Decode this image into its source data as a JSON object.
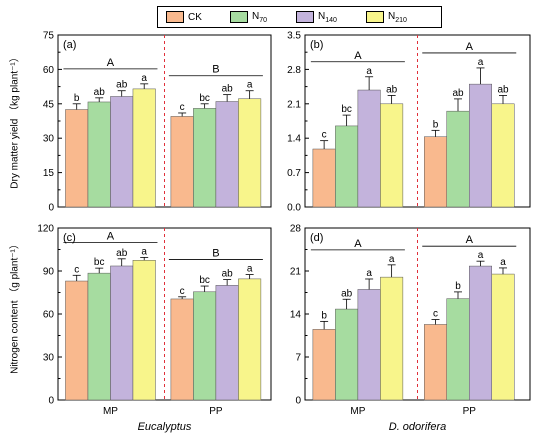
{
  "legend": [
    {
      "label": "CK",
      "color": "#f9b98e"
    },
    {
      "label": "N70",
      "color": "#a6dca0"
    },
    {
      "label": "N140",
      "color": "#c3b3dc"
    },
    {
      "label": "N210",
      "color": "#f8f58b"
    }
  ],
  "y_axis_titles": {
    "top": "Dry matter yield （kg plant⁻¹）",
    "bottom": "Nitrogen  content （g plant⁻¹）"
  },
  "chart_data": [
    {
      "type": "bar",
      "panel": "(a)",
      "categories": [
        "MP",
        "PP"
      ],
      "series": [
        {
          "name": "CK",
          "values": [
            42.5,
            39.5
          ],
          "errors": [
            2.5,
            1.5
          ],
          "letters": [
            "b",
            "c"
          ]
        },
        {
          "name": "N70",
          "values": [
            45.8,
            43.0
          ],
          "errors": [
            1.8,
            2.0
          ],
          "letters": [
            "ab",
            "bc"
          ]
        },
        {
          "name": "N140",
          "values": [
            48.2,
            46.0
          ],
          "errors": [
            2.5,
            3.0
          ],
          "letters": [
            "ab",
            "ab"
          ]
        },
        {
          "name": "N210",
          "values": [
            51.5,
            47.2
          ],
          "errors": [
            2.2,
            3.5
          ],
          "letters": [
            "a",
            "a"
          ]
        }
      ],
      "group_letters": [
        "A",
        "B"
      ],
      "ylim": [
        0,
        75
      ],
      "yticks": [
        0,
        15,
        30,
        45,
        60,
        75
      ],
      "xlabel": "Eucalyptus"
    },
    {
      "type": "bar",
      "panel": "(b)",
      "categories": [
        "MP",
        "PP"
      ],
      "series": [
        {
          "name": "CK",
          "values": [
            1.18,
            1.43
          ],
          "errors": [
            0.17,
            0.13
          ],
          "letters": [
            "c",
            "b"
          ]
        },
        {
          "name": "N70",
          "values": [
            1.65,
            1.95
          ],
          "errors": [
            0.22,
            0.25
          ],
          "letters": [
            "bc",
            "ab"
          ]
        },
        {
          "name": "N140",
          "values": [
            2.38,
            2.5
          ],
          "errors": [
            0.27,
            0.33
          ],
          "letters": [
            "a",
            "a"
          ]
        },
        {
          "name": "N210",
          "values": [
            2.1,
            2.1
          ],
          "errors": [
            0.17,
            0.17
          ],
          "letters": [
            "ab",
            "ab"
          ]
        }
      ],
      "group_letters": [
        "A",
        "A"
      ],
      "ylim": [
        0,
        3.5
      ],
      "yticks": [
        0.0,
        0.7,
        1.4,
        2.1,
        2.8,
        3.5
      ],
      "xlabel": "D. odorifera"
    },
    {
      "type": "bar",
      "panel": "(c)",
      "categories": [
        "MP",
        "PP"
      ],
      "series": [
        {
          "name": "CK",
          "values": [
            83.0,
            70.5
          ],
          "errors": [
            4.0,
            1.5
          ],
          "letters": [
            "c",
            "c"
          ]
        },
        {
          "name": "N70",
          "values": [
            88.5,
            75.5
          ],
          "errors": [
            3.5,
            4.0
          ],
          "letters": [
            "bc",
            "bc"
          ]
        },
        {
          "name": "N140",
          "values": [
            93.5,
            80.0
          ],
          "errors": [
            5.0,
            4.0
          ],
          "letters": [
            "ab",
            "ab"
          ]
        },
        {
          "name": "N210",
          "values": [
            97.5,
            84.5
          ],
          "errors": [
            2.0,
            3.0
          ],
          "letters": [
            "a",
            "a"
          ]
        }
      ],
      "group_letters": [
        "A",
        "B"
      ],
      "ylim": [
        0,
        120
      ],
      "yticks": [
        0,
        30,
        60,
        90,
        120
      ],
      "xlabel": "Eucalyptus"
    },
    {
      "type": "bar",
      "panel": "(d)",
      "categories": [
        "MP",
        "PP"
      ],
      "series": [
        {
          "name": "CK",
          "values": [
            11.5,
            12.3
          ],
          "errors": [
            1.3,
            0.8
          ],
          "letters": [
            "b",
            "c"
          ]
        },
        {
          "name": "N70",
          "values": [
            14.8,
            16.5
          ],
          "errors": [
            1.6,
            1.1
          ],
          "letters": [
            "ab",
            "b"
          ]
        },
        {
          "name": "N140",
          "values": [
            18.0,
            21.8
          ],
          "errors": [
            1.7,
            0.8
          ],
          "letters": [
            "a",
            "a"
          ]
        },
        {
          "name": "N210",
          "values": [
            20.0,
            20.5
          ],
          "errors": [
            2.0,
            1.0
          ],
          "letters": [
            "a",
            "a"
          ]
        }
      ],
      "group_letters": [
        "A",
        "A"
      ],
      "ylim": [
        0,
        28
      ],
      "yticks": [
        0,
        7,
        14,
        21,
        28
      ],
      "xlabel": "D. odorifera"
    }
  ]
}
